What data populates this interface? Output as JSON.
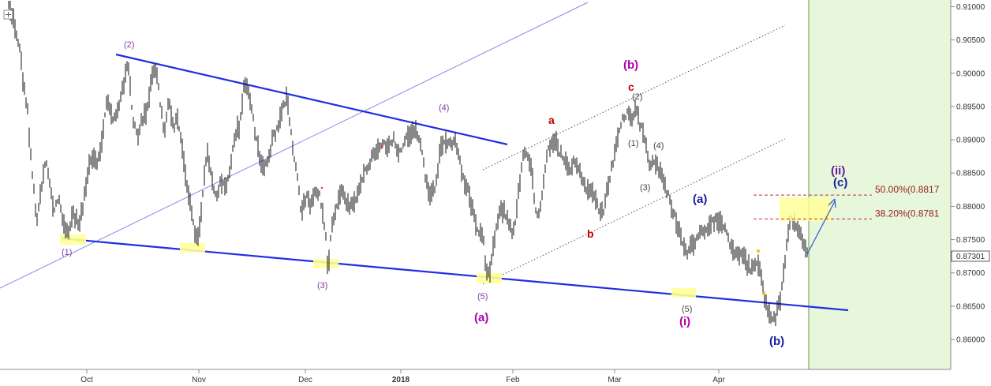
{
  "chart_data": {
    "type": "candlestick",
    "instrument_price_display": "0.87301",
    "x_axis": {
      "ticks": [
        "Oct",
        "Nov",
        "Dec",
        "2018",
        "Feb",
        "Mar",
        "Apr"
      ]
    },
    "y_axis": {
      "range": [
        0.8555,
        0.911
      ],
      "ticks": [
        "0.91000",
        "0.90500",
        "0.90000",
        "0.89500",
        "0.89000",
        "0.88500",
        "0.88000",
        "0.87500",
        "0.87000",
        "0.86500",
        "0.86000"
      ]
    },
    "fib_levels": [
      {
        "label": "50.00%(0.8817",
        "value": 0.8817
      },
      {
        "label": "38.20%(0.8781",
        "value": 0.8781
      }
    ],
    "wave_labels": [
      {
        "text": "(1)",
        "x": 0.04,
        "y": 0.874,
        "color": "#7a3fa8"
      },
      {
        "text": "(2)",
        "x": 0.12,
        "y": 0.906,
        "color": "#7a3fa8"
      },
      {
        "text": "(3)",
        "x": 0.3,
        "y": 0.869,
        "color": "#7a3fa8"
      },
      {
        "text": "(4)",
        "x": 0.44,
        "y": 0.896,
        "color": "#7a3fa8"
      },
      {
        "text": "(5)",
        "x": 0.49,
        "y": 0.867,
        "color": "#7a3fa8"
      },
      {
        "text": "(a)",
        "x": 0.49,
        "y": 0.864,
        "color": "#b000b0"
      },
      {
        "text": "(b)",
        "x": 0.64,
        "y": 0.901,
        "color": "#b000b0"
      },
      {
        "text": "a",
        "x": 0.56,
        "y": 0.894,
        "color": "#c00000"
      },
      {
        "text": "b",
        "x": 0.6,
        "y": 0.8757,
        "color": "#c00000"
      },
      {
        "text": "c",
        "x": 0.64,
        "y": 0.899,
        "color": "#c00000"
      },
      {
        "text": "(2)",
        "x": 0.65,
        "y": 0.897,
        "color": "#444444"
      },
      {
        "text": "(1)",
        "x": 0.64,
        "y": 0.89,
        "color": "#444444"
      },
      {
        "text": "(4)",
        "x": 0.67,
        "y": 0.89,
        "color": "#444444"
      },
      {
        "text": "(3)",
        "x": 0.66,
        "y": 0.884,
        "color": "#444444"
      },
      {
        "text": "(5)",
        "x": 0.7,
        "y": 0.866,
        "color": "#444444"
      },
      {
        "text": "(i)",
        "x": 0.7,
        "y": 0.864,
        "color": "#b000b0"
      },
      {
        "text": "(a)",
        "x": 0.71,
        "y": 0.882,
        "color": "#1a1aa0"
      },
      {
        "text": "(b)",
        "x": 0.79,
        "y": 0.861,
        "color": "#1a1aa0"
      },
      {
        "text": "(ii)",
        "x": 0.85,
        "y": 0.885,
        "color": "#6a1aa0"
      },
      {
        "text": "(c)",
        "x": 0.85,
        "y": 0.8835,
        "color": "#1a1aa0"
      }
    ]
  }
}
